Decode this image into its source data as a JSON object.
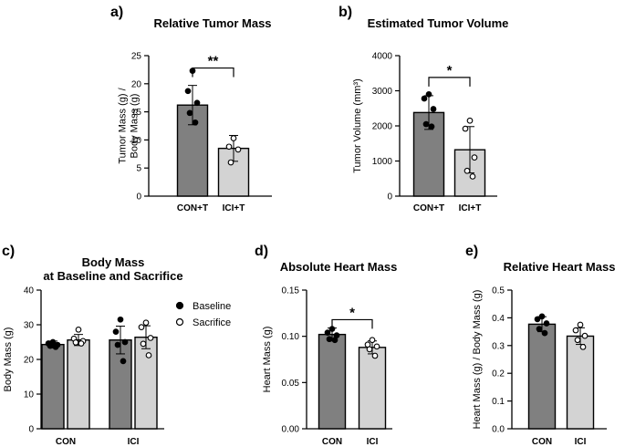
{
  "chart_data": [
    {
      "id": "a",
      "panel_label": "a)",
      "type": "bar",
      "title": "Relative Tumor Mass",
      "title_lines": [
        "Relative Tumor Mass"
      ],
      "ylabel_lines": [
        "Tumor Mass (g) /",
        "Body Mass (g)"
      ],
      "ylim": [
        0,
        25
      ],
      "yticks": [
        0,
        5,
        10,
        15,
        20,
        25
      ],
      "ytick_labels": [
        "0",
        "5",
        "10",
        "15",
        "20",
        "25"
      ],
      "categories": [
        "CON+T",
        "ICI+T"
      ],
      "bars": [
        {
          "category": "CON+T",
          "mean": 16.2,
          "sd": 3.5,
          "fill": "#808080",
          "marker": "filled",
          "points": [
            22.3,
            18.7,
            16.6,
            14.8,
            13.1
          ]
        },
        {
          "category": "ICI+T",
          "mean": 8.5,
          "sd": 2.3,
          "fill": "#d3d3d3",
          "marker": "open",
          "points": [
            10.3,
            8.8,
            8.3,
            6.0
          ]
        }
      ],
      "significance": [
        {
          "from": 0,
          "to": 1,
          "label": "**",
          "y": 22.8
        }
      ]
    },
    {
      "id": "b",
      "panel_label": "b)",
      "type": "bar",
      "title": "Estimated Tumor Volume",
      "title_lines": [
        "Estimated Tumor Volume"
      ],
      "ylabel_lines": [
        "Tumor Volume (mm³)"
      ],
      "ylim": [
        0,
        4000
      ],
      "yticks": [
        0,
        1000,
        2000,
        3000,
        4000
      ],
      "ytick_labels": [
        "0",
        "1000",
        "2000",
        "3000",
        "4000"
      ],
      "categories": [
        "CON+T",
        "ICI+T"
      ],
      "bars": [
        {
          "category": "CON+T",
          "mean": 2380,
          "sd": 480,
          "fill": "#808080",
          "marker": "filled",
          "points": [
            2900,
            2780,
            2480,
            2050,
            1980
          ]
        },
        {
          "category": "ICI+T",
          "mean": 1320,
          "sd": 660,
          "fill": "#d3d3d3",
          "marker": "open",
          "points": [
            2150,
            1920,
            1100,
            720,
            560
          ]
        }
      ],
      "significance": [
        {
          "from": 0,
          "to": 1,
          "label": "*",
          "y": 3380
        }
      ]
    },
    {
      "id": "c",
      "panel_label": "c)",
      "type": "bar",
      "title": "Body Mass at Baseline and Sacrifice",
      "title_lines": [
        "Body Mass",
        "at Baseline and Sacrifice"
      ],
      "ylabel_lines": [
        "Body Mass (g)"
      ],
      "ylim": [
        0,
        40
      ],
      "yticks": [
        0,
        10,
        20,
        30,
        40
      ],
      "ytick_labels": [
        "0",
        "10",
        "20",
        "30",
        "40"
      ],
      "categories": [
        "CON",
        "ICI"
      ],
      "legend": [
        {
          "label": "Baseline",
          "marker": "filled"
        },
        {
          "label": "Sacrifice",
          "marker": "open"
        }
      ],
      "bars": [
        {
          "category": "CON",
          "series": "Baseline",
          "mean": 24.3,
          "sd": 1.0,
          "fill": "#808080",
          "marker": "filled",
          "points": [
            25.0,
            24.6,
            24.2,
            23.9,
            23.6
          ]
        },
        {
          "category": "CON",
          "series": "Sacrifice",
          "mean": 25.6,
          "sd": 1.6,
          "fill": "#d3d3d3",
          "marker": "open",
          "points": [
            28.6,
            26.0,
            25.3,
            24.9,
            24.6
          ]
        },
        {
          "category": "ICI",
          "series": "Baseline",
          "mean": 25.6,
          "sd": 4.0,
          "fill": "#808080",
          "marker": "filled",
          "points": [
            31.5,
            28.0,
            25.0,
            24.2,
            19.5
          ]
        },
        {
          "category": "ICI",
          "series": "Sacrifice",
          "mean": 26.4,
          "sd": 3.3,
          "fill": "#d3d3d3",
          "marker": "open",
          "points": [
            30.6,
            29.3,
            26.2,
            24.5,
            21.2
          ]
        }
      ],
      "significance": []
    },
    {
      "id": "d",
      "panel_label": "d)",
      "type": "bar",
      "title": "Absolute Heart Mass",
      "title_lines": [
        "Absolute Heart Mass"
      ],
      "ylabel_lines": [
        "Heart Mass (g)"
      ],
      "ylim": [
        0,
        0.15
      ],
      "yticks": [
        0,
        0.05,
        0.1,
        0.15
      ],
      "ytick_labels": [
        "0.00",
        "0.05",
        "0.10",
        "0.15"
      ],
      "categories": [
        "CON",
        "ICI"
      ],
      "bars": [
        {
          "category": "CON",
          "mean": 0.102,
          "sd": 0.007,
          "fill": "#808080",
          "marker": "filled",
          "points": [
            0.108,
            0.104,
            0.101,
            0.097,
            0.096
          ]
        },
        {
          "category": "ICI",
          "mean": 0.088,
          "sd": 0.007,
          "fill": "#d3d3d3",
          "marker": "open",
          "points": [
            0.096,
            0.091,
            0.089,
            0.086,
            0.079
          ]
        }
      ],
      "significance": [
        {
          "from": 0,
          "to": 1,
          "label": "*",
          "y": 0.118
        }
      ]
    },
    {
      "id": "e",
      "panel_label": "e)",
      "type": "bar",
      "title": "Relative Heart Mass",
      "title_lines": [
        "Relative Heart Mass"
      ],
      "ylabel_lines": [
        "Heart Mass (g) / Body Mass (g)"
      ],
      "ylim": [
        0,
        0.5
      ],
      "yticks": [
        0,
        0.1,
        0.2,
        0.3,
        0.4,
        0.5
      ],
      "ytick_labels": [
        "0.0",
        "0.1",
        "0.2",
        "0.3",
        "0.4",
        "0.5"
      ],
      "categories": [
        "CON",
        "ICI"
      ],
      "bars": [
        {
          "category": "CON",
          "mean": 0.377,
          "sd": 0.027,
          "fill": "#808080",
          "marker": "filled",
          "points": [
            0.405,
            0.395,
            0.38,
            0.36,
            0.345
          ]
        },
        {
          "category": "ICI",
          "mean": 0.334,
          "sd": 0.03,
          "fill": "#d3d3d3",
          "marker": "open",
          "points": [
            0.375,
            0.355,
            0.335,
            0.32,
            0.295
          ]
        }
      ],
      "significance": []
    }
  ]
}
